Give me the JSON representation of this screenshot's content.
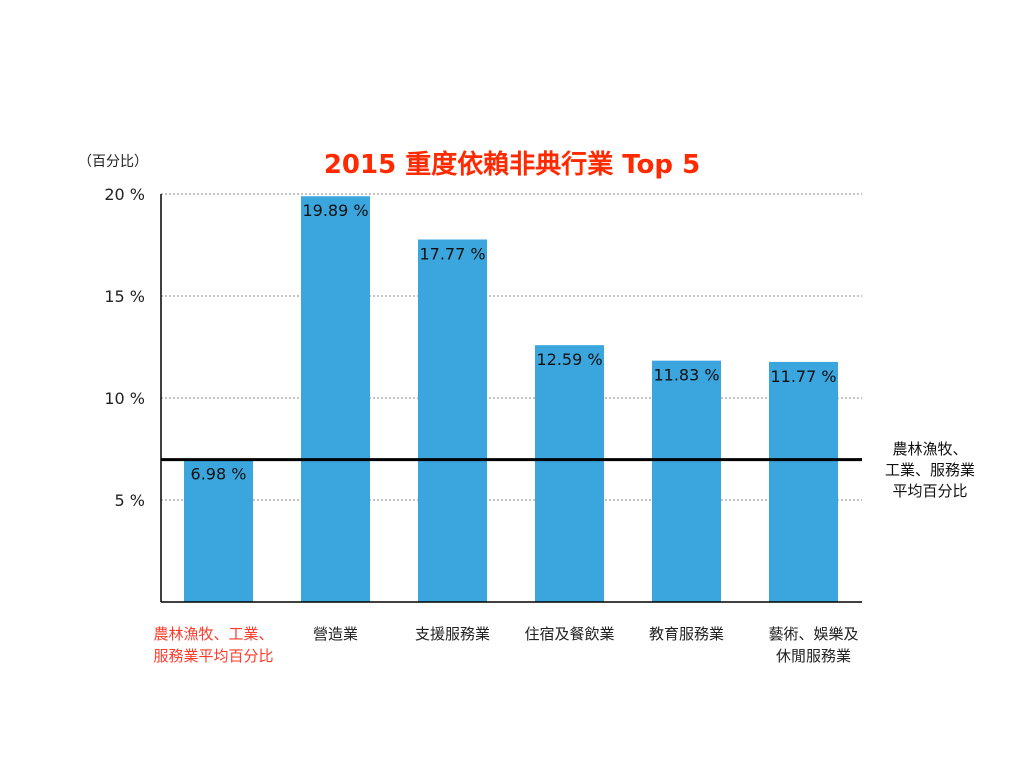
{
  "chart_data": {
    "type": "bar",
    "title": "2015 重度依賴非典行業 Top 5",
    "ylabel": "（百分比）",
    "ylim": [
      0,
      20
    ],
    "yticks": [
      {
        "v": 5,
        "label": "5 %"
      },
      {
        "v": 10,
        "label": "10 %"
      },
      {
        "v": 15,
        "label": "15 %"
      },
      {
        "v": 20,
        "label": "20 %"
      }
    ],
    "grid": true,
    "categories": [
      [
        "農林漁牧、工業、",
        "服務業平均百分比"
      ],
      [
        "營造業"
      ],
      [
        "支援服務業"
      ],
      [
        "住宿及餐飲業"
      ],
      [
        "教育服務業"
      ],
      [
        "藝術、娛樂及",
        "休閒服務業"
      ]
    ],
    "values": [
      6.98,
      19.89,
      17.77,
      12.59,
      11.83,
      11.77
    ],
    "data_labels": [
      "6.98 %",
      "19.89 %",
      "17.77 %",
      "12.59 %",
      "11.83 %",
      "11.77 %"
    ],
    "reference_line": {
      "value": 6.98,
      "label": [
        "農林漁牧、",
        "工業、服務業",
        "平均百分比"
      ]
    },
    "colors": {
      "bar": "#3aa6dd",
      "title": "#ff2a00",
      "highlight_category": "#ff3b2a",
      "reference_line": "#000000",
      "text": "#222222"
    }
  }
}
